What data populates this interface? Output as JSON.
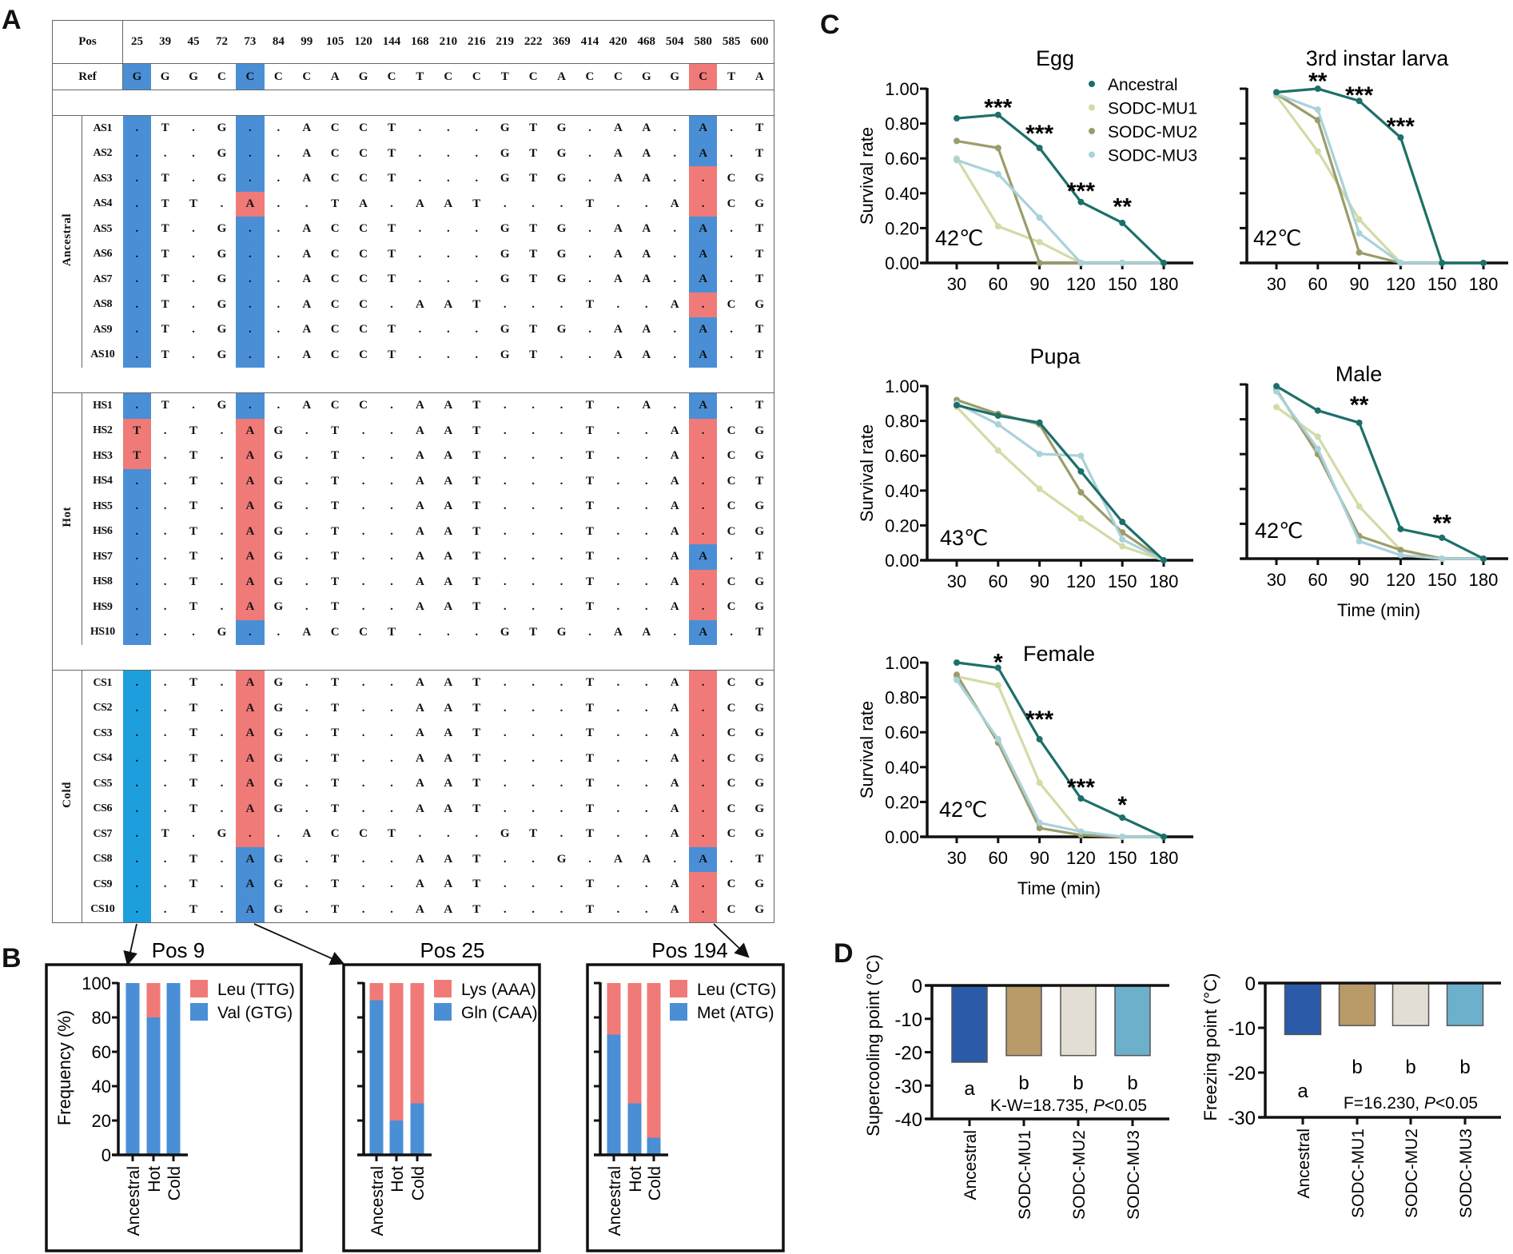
{
  "panel_labels": {
    "a": "A",
    "b": "B",
    "c": "C",
    "d": "D"
  },
  "alignment": {
    "pos_label": "Pos",
    "ref_label": "Ref",
    "positions": [
      "25",
      "39",
      "45",
      "72",
      "73",
      "84",
      "99",
      "105",
      "120",
      "144",
      "168",
      "210",
      "216",
      "219",
      "222",
      "369",
      "414",
      "420",
      "468",
      "504",
      "580",
      "585",
      "600"
    ],
    "ref": "G G G C C C C A G C T C C T C A C C G G C T A",
    "ref_hl": "BBR",
    "highlight_columns": [
      0,
      4,
      20
    ],
    "highlight_colors": {
      "B": "#4a8fd6",
      "R": "#f07a78",
      "C": "#1c9fdc"
    },
    "groups": [
      {
        "name": "Ancestral",
        "rows": [
          {
            "id": "AS1",
            "seq": ". T . G . . A C C T . . . G T G . A A . A . T",
            "hl": "BBB"
          },
          {
            "id": "AS2",
            "seq": ". . . G . . A C C T . . . G T G . A A . A . T",
            "hl": "BBB"
          },
          {
            "id": "AS3",
            "seq": ". T . G . . A C C T . . . G T G . A A . . C G",
            "hl": "BBR"
          },
          {
            "id": "AS4",
            "seq": ". T T . A . . T A . A A T . . . T . . A . C G",
            "hl": "BRR"
          },
          {
            "id": "AS5",
            "seq": ". T . G . . A C C T . . . G T G . A A . A . T",
            "hl": "BBB"
          },
          {
            "id": "AS6",
            "seq": ". T . G . . A C C T . . . G T G . A A . A . T",
            "hl": "BBB"
          },
          {
            "id": "AS7",
            "seq": ". T . G . . A C C T . . . G T G . A A . A . T",
            "hl": "BBB"
          },
          {
            "id": "AS8",
            "seq": ". T . G . . A C C . A A T . . . T . . A . C G",
            "hl": "BBR"
          },
          {
            "id": "AS9",
            "seq": ". T . G . . A C C T . . . G T G . A A . A . T",
            "hl": "BBB"
          },
          {
            "id": "AS10",
            "seq": ". T . G . . A C C T . . . G T . . A A . A . T",
            "hl": "BBB"
          }
        ]
      },
      {
        "name": "Hot",
        "rows": [
          {
            "id": "HS1",
            "seq": ". T . G . . A C C . A A T . . . T . A . A . T",
            "hl": "BBB"
          },
          {
            "id": "HS2",
            "seq": "T . T . A G . T . . A A T . . . T . . A . C G",
            "hl": "RRR"
          },
          {
            "id": "HS3",
            "seq": "T . T . A G . T . . A A T . . . T . . A . C G",
            "hl": "RRR"
          },
          {
            "id": "HS4",
            "seq": ". . T . A G . T . . A A T . . . T . . A . C T",
            "hl": "BRR"
          },
          {
            "id": "HS5",
            "seq": ". . T . A G . T . . A A T . . . T . . A . C G",
            "hl": "BRR"
          },
          {
            "id": "HS6",
            "seq": ". . T . A G . T . . A A T . . . T . . A . C G",
            "hl": "BRR"
          },
          {
            "id": "HS7",
            "seq": ". . T . A G . T . . A A T . . . T . . A A . T",
            "hl": "BRB"
          },
          {
            "id": "HS8",
            "seq": ". . T . A G . T . . A A T . . . T . . A . C G",
            "hl": "BRR"
          },
          {
            "id": "HS9",
            "seq": ". . T . A G . T . . A A T . . . T . . A . C G",
            "hl": "BRR"
          },
          {
            "id": "HS10",
            "seq": ". . . G . . A C C T . . . G T G . A A . A . T",
            "hl": "BBB"
          }
        ]
      },
      {
        "name": "Cold",
        "rows": [
          {
            "id": "CS1",
            "seq": ". . T . A G . T . . A A T . . . T . . A . C G",
            "hl": "CRR"
          },
          {
            "id": "CS2",
            "seq": ". . T . A G . T . . A A T . . . T . . A . C G",
            "hl": "CRR"
          },
          {
            "id": "CS3",
            "seq": ". . T . A G . T . . A A T . . . T . . A . C G",
            "hl": "CRR"
          },
          {
            "id": "CS4",
            "seq": ". . T . A G . T . . A A T . . . T . . A . C G",
            "hl": "CRR"
          },
          {
            "id": "CS5",
            "seq": ". . T . A G . T . . A A T . . . T . . A . C G",
            "hl": "CRR"
          },
          {
            "id": "CS6",
            "seq": ". . T . A G . T . . A A T . . . T . . A . C G",
            "hl": "CRR"
          },
          {
            "id": "CS7",
            "seq": ". T . G . . A C C T . . . G T . T . . A . C G",
            "hl": "CRR"
          },
          {
            "id": "CS8",
            "seq": ". . T . A G . T . . A A T . . G . A A . A . T",
            "hl": "CBB"
          },
          {
            "id": "CS9",
            "seq": ". . T . A G . T . . A A T . . . T . . A . C G",
            "hl": "CBR"
          },
          {
            "id": "CS10",
            "seq": ". . T . A G . T . . A A T . . . T . . A . C G",
            "hl": "CBR"
          }
        ]
      }
    ]
  },
  "chart_data": [
    {
      "panel": "B",
      "type": "bar",
      "stacked": true,
      "title": "Pos 9",
      "ylabel": "Frequency (%)",
      "ylim": [
        0,
        100
      ],
      "ytick_labels": [
        "0",
        "20",
        "40",
        "60",
        "80",
        "100"
      ],
      "categories": [
        "Ancestral",
        "Hot",
        "Cold"
      ],
      "series": [
        {
          "name": "Leu (TTG)",
          "values": [
            0,
            20,
            0
          ],
          "color": "#f07a78"
        },
        {
          "name": "Val (GTG)",
          "values": [
            100,
            80,
            100
          ],
          "color": "#4a8fd6"
        }
      ]
    },
    {
      "panel": "B",
      "type": "bar",
      "stacked": true,
      "title": "Pos 25",
      "ylabel": "",
      "ylim": [
        0,
        100
      ],
      "ytick_labels": [],
      "categories": [
        "Ancestral",
        "Hot",
        "Cold"
      ],
      "series": [
        {
          "name": "Lys (AAA)",
          "values": [
            10,
            80,
            70
          ],
          "color": "#f07a78"
        },
        {
          "name": "Gln (CAA)",
          "values": [
            90,
            20,
            30
          ],
          "color": "#4a8fd6"
        }
      ]
    },
    {
      "panel": "B",
      "type": "bar",
      "stacked": true,
      "title": "Pos 194",
      "ylabel": "",
      "ylim": [
        0,
        100
      ],
      "ytick_labels": [],
      "categories": [
        "Ancestral",
        "Hot",
        "Cold"
      ],
      "series": [
        {
          "name": "Leu (CTG)",
          "values": [
            30,
            70,
            90
          ],
          "color": "#f07a78"
        },
        {
          "name": "Met (ATG)",
          "values": [
            70,
            30,
            10
          ],
          "color": "#4a8fd6"
        }
      ]
    },
    {
      "panel": "C",
      "type": "line",
      "title": "Egg",
      "temperature": "42℃",
      "ylabel": "Survival rate",
      "xlabel": "",
      "ylim": [
        0,
        1
      ],
      "ytick_labels": [
        "0.00",
        "0.20",
        "0.40",
        "0.60",
        "0.80",
        "1.00"
      ],
      "x": [
        30,
        60,
        90,
        120,
        150,
        180
      ],
      "xtick_labels": [
        "30",
        "60",
        "90",
        "120",
        "150",
        "180"
      ],
      "show_legend": true,
      "series": [
        {
          "name": "Ancestral",
          "values": [
            0.83,
            0.85,
            0.66,
            0.35,
            0.23,
            0.0
          ],
          "color": "#1d6f69"
        },
        {
          "name": "SODC-MU1",
          "values": [
            0.6,
            0.21,
            0.12,
            0.0,
            0.0,
            0.0
          ],
          "color": "#d3dba6"
        },
        {
          "name": "SODC-MU2",
          "values": [
            0.7,
            0.66,
            0.0,
            0.0,
            0.0,
            0.0
          ],
          "color": "#9c9c6b"
        },
        {
          "name": "SODC-MU3",
          "values": [
            0.59,
            0.51,
            0.26,
            0.0,
            0.0,
            0.0
          ],
          "color": "#a9d2da"
        }
      ],
      "significance": [
        {
          "x": 60,
          "y": 0.93,
          "label": "***"
        },
        {
          "x": 90,
          "y": 0.78,
          "label": "***"
        },
        {
          "x": 120,
          "y": 0.45,
          "label": "***"
        },
        {
          "x": 150,
          "y": 0.36,
          "label": "**"
        }
      ]
    },
    {
      "panel": "C",
      "type": "line",
      "title": "3rd instar larva",
      "temperature": "42℃",
      "ylabel": "",
      "xlabel": "",
      "ylim": [
        0,
        1
      ],
      "ytick_labels": [],
      "x": [
        30,
        60,
        90,
        120,
        150,
        180
      ],
      "xtick_labels": [
        "30",
        "60",
        "90",
        "120",
        "150",
        "180"
      ],
      "show_legend": false,
      "series": [
        {
          "name": "Ancestral",
          "values": [
            0.98,
            1.0,
            0.93,
            0.72,
            0.0,
            0.0
          ],
          "color": "#1d6f69"
        },
        {
          "name": "SODC-MU1",
          "values": [
            0.96,
            0.64,
            0.25,
            0.0,
            0.0,
            0.0
          ],
          "color": "#d3dba6"
        },
        {
          "name": "SODC-MU2",
          "values": [
            0.97,
            0.82,
            0.06,
            0.0,
            0.0,
            0.0
          ],
          "color": "#9c9c6b"
        },
        {
          "name": "SODC-MU3",
          "values": [
            0.97,
            0.88,
            0.17,
            0.0,
            0.0,
            0.0
          ],
          "color": "#a9d2da"
        }
      ],
      "significance": [
        {
          "x": 60,
          "y": 1.08,
          "label": "**"
        },
        {
          "x": 90,
          "y": 1.0,
          "label": "***"
        },
        {
          "x": 120,
          "y": 0.82,
          "label": "***"
        }
      ]
    },
    {
      "panel": "C",
      "type": "line",
      "title": "Pupa",
      "temperature": "43℃",
      "ylabel": "Survival rate",
      "xlabel": "",
      "ylim": [
        0,
        1
      ],
      "ytick_labels": [
        "0.00",
        "0.20",
        "0.40",
        "0.60",
        "0.80",
        "1.00"
      ],
      "x": [
        30,
        60,
        90,
        120,
        150,
        180
      ],
      "xtick_labels": [
        "30",
        "60",
        "90",
        "120",
        "150",
        "180"
      ],
      "show_legend": false,
      "series": [
        {
          "name": "Ancestral",
          "values": [
            0.89,
            0.83,
            0.79,
            0.51,
            0.22,
            0.0
          ],
          "color": "#1d6f69"
        },
        {
          "name": "SODC-MU1",
          "values": [
            0.88,
            0.63,
            0.41,
            0.24,
            0.08,
            0.0
          ],
          "color": "#d3dba6"
        },
        {
          "name": "SODC-MU2",
          "values": [
            0.92,
            0.84,
            0.78,
            0.39,
            0.16,
            0.0
          ],
          "color": "#9c9c6b"
        },
        {
          "name": "SODC-MU3",
          "values": [
            0.9,
            0.78,
            0.61,
            0.6,
            0.12,
            0.0
          ],
          "color": "#a9d2da"
        }
      ],
      "significance": []
    },
    {
      "panel": "C",
      "type": "line",
      "title": "Male",
      "temperature": "42℃",
      "ylabel": "",
      "xlabel": "Time (min)",
      "ylim": [
        0,
        1
      ],
      "ytick_labels": [],
      "x": [
        30,
        60,
        90,
        120,
        150,
        180
      ],
      "xtick_labels": [
        "30",
        "60",
        "90",
        "120",
        "150",
        "180"
      ],
      "show_legend": false,
      "series": [
        {
          "name": "Ancestral",
          "values": [
            0.99,
            0.85,
            0.78,
            0.17,
            0.12,
            0.0
          ],
          "color": "#1d6f69"
        },
        {
          "name": "SODC-MU1",
          "values": [
            0.87,
            0.7,
            0.3,
            0.05,
            0.0,
            0.0
          ],
          "color": "#d3dba6"
        },
        {
          "name": "SODC-MU2",
          "values": [
            0.97,
            0.6,
            0.13,
            0.05,
            0.0,
            0.0
          ],
          "color": "#9c9c6b"
        },
        {
          "name": "SODC-MU3",
          "values": [
            0.96,
            0.63,
            0.1,
            0.02,
            0.0,
            0.0
          ],
          "color": "#a9d2da"
        }
      ],
      "significance": [
        {
          "x": 90,
          "y": 0.92,
          "label": "**"
        },
        {
          "x": 150,
          "y": 0.24,
          "label": "**"
        }
      ]
    },
    {
      "panel": "C",
      "type": "line",
      "title": "Female",
      "temperature": "42℃",
      "ylabel": "Survival rate",
      "xlabel": "Time (min)",
      "ylim": [
        0,
        1
      ],
      "ytick_labels": [
        "0.00",
        "0.20",
        "0.40",
        "0.60",
        "0.80",
        "1.00"
      ],
      "x": [
        30,
        60,
        90,
        120,
        150,
        180
      ],
      "xtick_labels": [
        "30",
        "60",
        "90",
        "120",
        "150",
        "180"
      ],
      "show_legend": false,
      "series": [
        {
          "name": "Ancestral",
          "values": [
            1.0,
            0.97,
            0.56,
            0.22,
            0.11,
            0.0
          ],
          "color": "#1d6f69"
        },
        {
          "name": "SODC-MU1",
          "values": [
            0.92,
            0.87,
            0.31,
            0.02,
            0.0,
            0.0
          ],
          "color": "#d3dba6"
        },
        {
          "name": "SODC-MU2",
          "values": [
            0.93,
            0.54,
            0.05,
            0.01,
            0.0,
            0.0
          ],
          "color": "#9c9c6b"
        },
        {
          "name": "SODC-MU3",
          "values": [
            0.9,
            0.56,
            0.08,
            0.03,
            0.0,
            0.0
          ],
          "color": "#a9d2da"
        }
      ],
      "significance": [
        {
          "x": 60,
          "y": 1.04,
          "label": "*"
        },
        {
          "x": 90,
          "y": 0.71,
          "label": "***"
        },
        {
          "x": 120,
          "y": 0.32,
          "label": "***"
        },
        {
          "x": 150,
          "y": 0.22,
          "label": "*"
        }
      ]
    },
    {
      "panel": "D",
      "type": "bar",
      "title": "",
      "ylabel": "Supercooling point (°C)",
      "ylim": [
        -40,
        0
      ],
      "ytick_labels": [
        "0",
        "-10",
        "-20",
        "-30",
        "-40"
      ],
      "categories": [
        "Ancestral",
        "SODC-MU1",
        "SODC-MU2",
        "SODC-MU3"
      ],
      "values": [
        -23,
        -21,
        -21,
        -21
      ],
      "colors": [
        "#2b5ba8",
        "#b89b69",
        "#e3ded4",
        "#6db0cc"
      ],
      "letters": [
        "a",
        "b",
        "b",
        "b"
      ],
      "stat": {
        "prefix": "K-W=18.735, ",
        "p": "P",
        "suffix": "<0.05"
      }
    },
    {
      "panel": "D",
      "type": "bar",
      "title": "",
      "ylabel": "Freezing point (°C)",
      "ylim": [
        -30,
        0
      ],
      "ytick_labels": [
        "0",
        "-10",
        "-20",
        "-30"
      ],
      "categories": [
        "Ancestral",
        "SODC-MU1",
        "SODC-MU2",
        "SODC-MU3"
      ],
      "values": [
        -11.5,
        -9.5,
        -9.5,
        -9.5
      ],
      "colors": [
        "#2b5ba8",
        "#b89b69",
        "#e3ded4",
        "#6db0cc"
      ],
      "letters": [
        "a",
        "b",
        "b",
        "b"
      ],
      "stat": {
        "prefix": "F=16.230, ",
        "p": "P",
        "suffix": "<0.05"
      }
    }
  ]
}
